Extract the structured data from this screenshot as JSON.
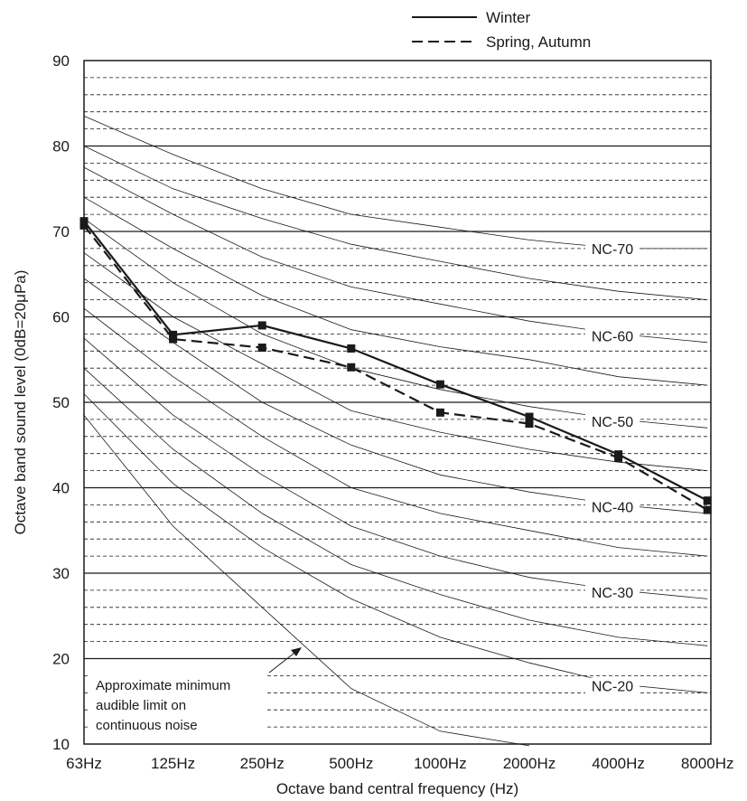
{
  "chart_data": {
    "type": "line",
    "xlabel": "Octave band central frequency (Hz)",
    "ylabel": "Octave band sound level (0dB=20μPa)",
    "ylim": [
      10,
      90
    ],
    "yticks": [
      "10",
      "20",
      "30",
      "40",
      "50",
      "60",
      "70",
      "80",
      "90"
    ],
    "categories": [
      "63Hz",
      "125Hz",
      "250Hz",
      "500Hz",
      "1000Hz",
      "2000Hz",
      "4000Hz",
      "8000Hz"
    ],
    "grid": "horizontal: solid every 10 dB, dashed every 2 dB",
    "legend": {
      "placement": "top-right",
      "entries": [
        {
          "label": "Winter",
          "style": "solid"
        },
        {
          "label": "Spring, Autumn",
          "style": "dashed"
        }
      ]
    },
    "series": [
      {
        "name": "Winter",
        "style": "solid",
        "marker": "square",
        "values": [
          71.2,
          57.9,
          59.0,
          56.3,
          52.1,
          48.3,
          43.9,
          38.5
        ]
      },
      {
        "name": "Spring, Autumn",
        "style": "dashed",
        "marker": "square",
        "values": [
          70.7,
          57.4,
          56.4,
          54.1,
          48.8,
          47.5,
          43.5,
          37.4
        ]
      }
    ],
    "nc_curves": [
      {
        "label": "NC-70",
        "values": [
          83.5,
          79,
          75,
          72,
          70.5,
          69,
          68,
          68
        ]
      },
      {
        "label": "",
        "values": [
          80,
          75,
          71.5,
          68.5,
          66.5,
          64.5,
          63,
          62
        ]
      },
      {
        "label": "NC-60",
        "values": [
          77.5,
          72,
          67,
          63.5,
          61.5,
          59.5,
          58,
          57
        ]
      },
      {
        "label": "",
        "values": [
          74,
          68,
          62.5,
          58.5,
          56.5,
          55,
          53,
          52
        ]
      },
      {
        "label": "NC-50",
        "values": [
          71.5,
          64,
          58,
          54,
          51.5,
          49.5,
          48,
          47
        ]
      },
      {
        "label": "",
        "values": [
          67.5,
          60,
          54.5,
          49,
          46.5,
          44.5,
          43,
          42
        ]
      },
      {
        "label": "NC-40",
        "values": [
          64.5,
          57,
          50,
          45,
          41.5,
          39.5,
          38,
          37
        ]
      },
      {
        "label": "",
        "values": [
          61,
          53,
          46,
          40,
          37,
          35,
          33,
          32
        ]
      },
      {
        "label": "NC-30",
        "values": [
          57.5,
          48.5,
          41.5,
          35.5,
          32,
          29.5,
          28,
          27
        ]
      },
      {
        "label": "",
        "values": [
          54,
          44.5,
          37,
          31,
          27.5,
          24.5,
          22.5,
          21.5
        ]
      },
      {
        "label": "NC-20",
        "values": [
          51,
          40.5,
          33,
          27,
          22.5,
          19.5,
          17,
          16
        ]
      }
    ],
    "audible_limit": {
      "values": [
        48.5,
        35.5,
        26,
        16.5,
        11.5,
        9.8,
        null,
        null
      ],
      "annotation": [
        "Approximate minimum",
        "audible limit on",
        "continuous noise"
      ]
    }
  }
}
